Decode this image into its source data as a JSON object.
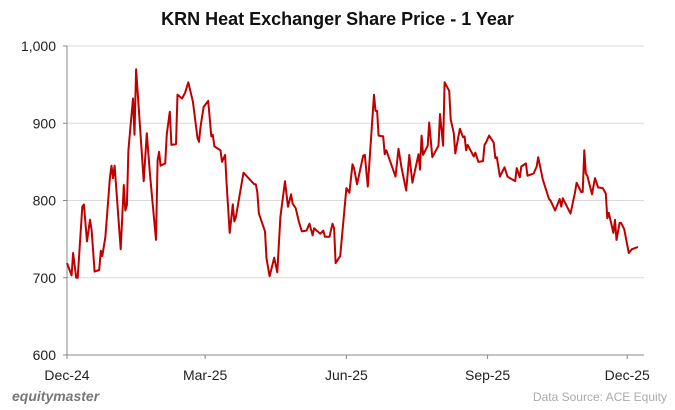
{
  "chart_data": {
    "type": "line",
    "title": "KRN Heat Exchanger Share Price - 1 Year",
    "xlabel": "",
    "ylabel": "",
    "ylim": [
      600,
      1000
    ],
    "yticks": [
      "600",
      "700",
      "800",
      "900",
      "1,000"
    ],
    "ytick_values": [
      600,
      700,
      800,
      900,
      1000
    ],
    "xticks": [
      {
        "label": "Dec-24",
        "date": "2024-12-01"
      },
      {
        "label": "Mar-25",
        "date": "2025-03-01"
      },
      {
        "label": "Jun-25",
        "date": "2025-06-01"
      },
      {
        "label": "Sep-25",
        "date": "2025-09-01"
      },
      {
        "label": "Dec-25",
        "date": "2025-12-01"
      }
    ],
    "xlim": [
      "2024-12-01",
      "2025-12-08"
    ],
    "grid": "horizontal",
    "series": [
      {
        "color": "#C00000",
        "points": [
          [
            "2024-12-01",
            719
          ],
          [
            "2024-12-04",
            703
          ],
          [
            "2024-12-05",
            732
          ],
          [
            "2024-12-07",
            700
          ],
          [
            "2024-12-08",
            700
          ],
          [
            "2024-12-11",
            792
          ],
          [
            "2024-12-12",
            795
          ],
          [
            "2024-12-14",
            747
          ],
          [
            "2024-12-16",
            775
          ],
          [
            "2024-12-17",
            762
          ],
          [
            "2024-12-19",
            708
          ],
          [
            "2024-12-22",
            710
          ],
          [
            "2024-12-23",
            735
          ],
          [
            "2024-12-24",
            728
          ],
          [
            "2024-12-26",
            753
          ],
          [
            "2024-12-29",
            831
          ],
          [
            "2024-12-30",
            845
          ],
          [
            "2024-12-31",
            829
          ],
          [
            "2025-01-01",
            845
          ],
          [
            "2025-01-05",
            737
          ],
          [
            "2025-01-07",
            820
          ],
          [
            "2025-01-08",
            787
          ],
          [
            "2025-01-09",
            794
          ],
          [
            "2025-01-10",
            865
          ],
          [
            "2025-01-13",
            932
          ],
          [
            "2025-01-14",
            885
          ],
          [
            "2025-01-15",
            970
          ],
          [
            "2025-01-20",
            825
          ],
          [
            "2025-01-22",
            887
          ],
          [
            "2025-01-24",
            835
          ],
          [
            "2025-01-28",
            749
          ],
          [
            "2025-01-29",
            852
          ],
          [
            "2025-01-30",
            863
          ],
          [
            "2025-01-31",
            845
          ],
          [
            "2025-02-03",
            848
          ],
          [
            "2025-02-04",
            886
          ],
          [
            "2025-02-06",
            915
          ],
          [
            "2025-02-07",
            872
          ],
          [
            "2025-02-10",
            873
          ],
          [
            "2025-02-11",
            937
          ],
          [
            "2025-02-14",
            932
          ],
          [
            "2025-02-16",
            940
          ],
          [
            "2025-02-18",
            953
          ],
          [
            "2025-02-21",
            928
          ],
          [
            "2025-02-24",
            881
          ],
          [
            "2025-02-25",
            876
          ],
          [
            "2025-02-26",
            895
          ],
          [
            "2025-02-28",
            921
          ],
          [
            "2025-03-03",
            929
          ],
          [
            "2025-03-05",
            883
          ],
          [
            "2025-03-06",
            885
          ],
          [
            "2025-03-07",
            870
          ],
          [
            "2025-03-11",
            865
          ],
          [
            "2025-03-12",
            850
          ],
          [
            "2025-03-14",
            859
          ],
          [
            "2025-03-15",
            822
          ],
          [
            "2025-03-17",
            758
          ],
          [
            "2025-03-19",
            795
          ],
          [
            "2025-03-20",
            773
          ],
          [
            "2025-03-21",
            778
          ],
          [
            "2025-03-26",
            836
          ],
          [
            "2025-04-02",
            821
          ],
          [
            "2025-04-03",
            821
          ],
          [
            "2025-04-04",
            811
          ],
          [
            "2025-04-05",
            783
          ],
          [
            "2025-04-09",
            760
          ],
          [
            "2025-04-10",
            725
          ],
          [
            "2025-04-12",
            702
          ],
          [
            "2025-04-15",
            726
          ],
          [
            "2025-04-17",
            707
          ],
          [
            "2025-04-19",
            779
          ],
          [
            "2025-04-22",
            825
          ],
          [
            "2025-04-24",
            792
          ],
          [
            "2025-04-26",
            808
          ],
          [
            "2025-04-27",
            796
          ],
          [
            "2025-04-29",
            790
          ],
          [
            "2025-05-01",
            773
          ],
          [
            "2025-05-03",
            760
          ],
          [
            "2025-05-06",
            761
          ],
          [
            "2025-05-08",
            770
          ],
          [
            "2025-05-10",
            755
          ],
          [
            "2025-05-11",
            764
          ],
          [
            "2025-05-15",
            757
          ],
          [
            "2025-05-17",
            761
          ],
          [
            "2025-05-18",
            753
          ],
          [
            "2025-05-21",
            753
          ],
          [
            "2025-05-23",
            770
          ],
          [
            "2025-05-24",
            764
          ],
          [
            "2025-05-25",
            719
          ],
          [
            "2025-05-28",
            728
          ],
          [
            "2025-06-01",
            816
          ],
          [
            "2025-06-03",
            810
          ],
          [
            "2025-06-05",
            847
          ],
          [
            "2025-06-06",
            842
          ],
          [
            "2025-06-08",
            821
          ],
          [
            "2025-06-10",
            840
          ],
          [
            "2025-06-12",
            858
          ],
          [
            "2025-06-13",
            859
          ],
          [
            "2025-06-15",
            818
          ],
          [
            "2025-06-19",
            937
          ],
          [
            "2025-06-20",
            916
          ],
          [
            "2025-06-21",
            916
          ],
          [
            "2025-06-22",
            884
          ],
          [
            "2025-06-25",
            883
          ],
          [
            "2025-06-26",
            860
          ],
          [
            "2025-06-27",
            865
          ],
          [
            "2025-07-03",
            831
          ],
          [
            "2025-07-05",
            867
          ],
          [
            "2025-07-07",
            842
          ],
          [
            "2025-07-10",
            813
          ],
          [
            "2025-07-12",
            859
          ],
          [
            "2025-07-14",
            823
          ],
          [
            "2025-07-18",
            860
          ],
          [
            "2025-07-19",
            840
          ],
          [
            "2025-07-20",
            884
          ],
          [
            "2025-07-21",
            859
          ],
          [
            "2025-07-24",
            871
          ],
          [
            "2025-07-25",
            901
          ],
          [
            "2025-07-27",
            856
          ],
          [
            "2025-07-31",
            871
          ],
          [
            "2025-08-01",
            912
          ],
          [
            "2025-08-03",
            871
          ],
          [
            "2025-08-04",
            953
          ],
          [
            "2025-08-07",
            942
          ],
          [
            "2025-08-08",
            905
          ],
          [
            "2025-08-10",
            887
          ],
          [
            "2025-08-11",
            861
          ],
          [
            "2025-08-14",
            893
          ],
          [
            "2025-08-16",
            882
          ],
          [
            "2025-08-17",
            883
          ],
          [
            "2025-08-18",
            865
          ],
          [
            "2025-08-19",
            872
          ],
          [
            "2025-08-23",
            857
          ],
          [
            "2025-08-24",
            862
          ],
          [
            "2025-08-26",
            850
          ],
          [
            "2025-08-29",
            851
          ],
          [
            "2025-08-30",
            872
          ],
          [
            "2025-08-31",
            875
          ],
          [
            "2025-09-02",
            884
          ],
          [
            "2025-09-05",
            875
          ],
          [
            "2025-09-06",
            855
          ],
          [
            "2025-09-07",
            856
          ],
          [
            "2025-09-09",
            831
          ],
          [
            "2025-09-12",
            843
          ],
          [
            "2025-09-14",
            831
          ],
          [
            "2025-09-19",
            825
          ],
          [
            "2025-09-20",
            842
          ],
          [
            "2025-09-22",
            830
          ],
          [
            "2025-09-23",
            844
          ],
          [
            "2025-09-26",
            848
          ],
          [
            "2025-09-27",
            832
          ],
          [
            "2025-10-01",
            835
          ],
          [
            "2025-10-03",
            844
          ],
          [
            "2025-10-04",
            856
          ],
          [
            "2025-10-07",
            827
          ],
          [
            "2025-10-11",
            802
          ],
          [
            "2025-10-12",
            800
          ],
          [
            "2025-10-15",
            787
          ],
          [
            "2025-10-18",
            802
          ],
          [
            "2025-10-19",
            792
          ],
          [
            "2025-10-20",
            803
          ],
          [
            "2025-10-25",
            783
          ],
          [
            "2025-10-28",
            811
          ],
          [
            "2025-10-29",
            823
          ],
          [
            "2025-11-01",
            811
          ],
          [
            "2025-11-02",
            811
          ],
          [
            "2025-11-03",
            865
          ],
          [
            "2025-11-04",
            835
          ],
          [
            "2025-11-05",
            832
          ],
          [
            "2025-11-08",
            808
          ],
          [
            "2025-11-10",
            829
          ],
          [
            "2025-11-12",
            817
          ],
          [
            "2025-11-15",
            816
          ],
          [
            "2025-11-17",
            809
          ],
          [
            "2025-11-18",
            777
          ],
          [
            "2025-11-19",
            784
          ],
          [
            "2025-11-22",
            758
          ],
          [
            "2025-11-23",
            775
          ],
          [
            "2025-11-24",
            749
          ],
          [
            "2025-11-26",
            771
          ],
          [
            "2025-11-27",
            771
          ],
          [
            "2025-11-29",
            763
          ],
          [
            "2025-12-02",
            732
          ],
          [
            "2025-12-04",
            737
          ],
          [
            "2025-12-08",
            740
          ]
        ]
      }
    ]
  },
  "footer": {
    "brand": "equitymaster",
    "source": "Data Source: ACE Equity"
  }
}
